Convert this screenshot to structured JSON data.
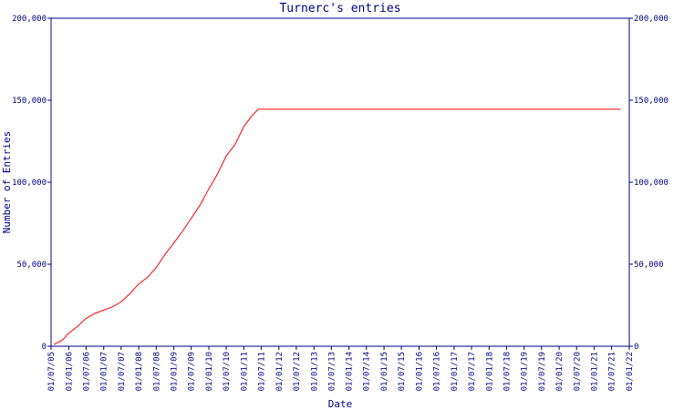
{
  "chart_data": {
    "type": "line",
    "title": "Turnerc's entries",
    "xlabel": "Date",
    "ylabel": "Number of Entries",
    "ylim": [
      0,
      200000
    ],
    "xlim": [
      "2005-07-01",
      "2022-01-01"
    ],
    "grid": false,
    "legend": "none",
    "y_ticks": [
      0,
      50000,
      100000,
      150000,
      200000
    ],
    "y_tick_labels": [
      "0",
      "50,000",
      "100,000",
      "150,000",
      "200,000"
    ],
    "x_ticks": [
      "2005-07-01",
      "2006-01-01",
      "2006-07-01",
      "2007-01-01",
      "2007-07-01",
      "2008-01-01",
      "2008-07-01",
      "2009-01-01",
      "2009-07-01",
      "2010-01-01",
      "2010-07-01",
      "2011-01-01",
      "2011-07-01",
      "2012-01-01",
      "2012-07-01",
      "2013-01-01",
      "2013-07-01",
      "2014-01-01",
      "2014-07-01",
      "2015-01-01",
      "2015-07-01",
      "2016-01-01",
      "2016-07-01",
      "2017-01-01",
      "2017-07-01",
      "2018-01-01",
      "2018-07-01",
      "2019-01-01",
      "2019-07-01",
      "2020-01-01",
      "2020-07-01",
      "2021-01-01",
      "2021-07-01",
      "2022-01-01"
    ],
    "x_tick_labels": [
      "01/07/05",
      "01/01/06",
      "01/07/06",
      "01/01/07",
      "01/07/07",
      "01/01/08",
      "01/07/08",
      "01/01/09",
      "01/07/09",
      "01/01/10",
      "01/07/10",
      "01/01/11",
      "01/07/11",
      "01/01/12",
      "01/07/12",
      "01/01/13",
      "01/07/13",
      "01/01/14",
      "01/07/14",
      "01/01/15",
      "01/07/15",
      "01/01/16",
      "01/07/16",
      "01/01/17",
      "01/07/17",
      "01/01/18",
      "01/07/18",
      "01/01/19",
      "01/07/19",
      "01/01/20",
      "01/07/20",
      "01/01/21",
      "01/07/21",
      "01/01/22"
    ],
    "colors": {
      "axis": "#000080",
      "text": "#000080",
      "series": "#ff0000"
    },
    "series": [
      {
        "name": "",
        "color": "#ff0000",
        "points": [
          [
            "2005-08-01",
            1000
          ],
          [
            "2005-11-01",
            4000
          ],
          [
            "2006-01-01",
            8000
          ],
          [
            "2006-04-01",
            12000
          ],
          [
            "2006-07-01",
            17000
          ],
          [
            "2006-10-01",
            20000
          ],
          [
            "2007-01-01",
            22000
          ],
          [
            "2007-04-01",
            24000
          ],
          [
            "2007-07-01",
            27000
          ],
          [
            "2007-10-01",
            32000
          ],
          [
            "2008-01-01",
            38000
          ],
          [
            "2008-04-01",
            42000
          ],
          [
            "2008-07-01",
            48000
          ],
          [
            "2008-10-01",
            56000
          ],
          [
            "2009-01-01",
            63000
          ],
          [
            "2009-04-01",
            70000
          ],
          [
            "2009-07-01",
            78000
          ],
          [
            "2009-10-01",
            86000
          ],
          [
            "2010-01-01",
            96000
          ],
          [
            "2010-04-01",
            105000
          ],
          [
            "2010-07-01",
            116000
          ],
          [
            "2010-10-01",
            123000
          ],
          [
            "2011-01-01",
            134000
          ],
          [
            "2011-04-01",
            141000
          ],
          [
            "2011-06-01",
            144500
          ],
          [
            "2012-01-01",
            144500
          ],
          [
            "2016-01-01",
            144500
          ],
          [
            "2020-01-01",
            144500
          ],
          [
            "2021-10-01",
            144500
          ]
        ]
      }
    ]
  }
}
